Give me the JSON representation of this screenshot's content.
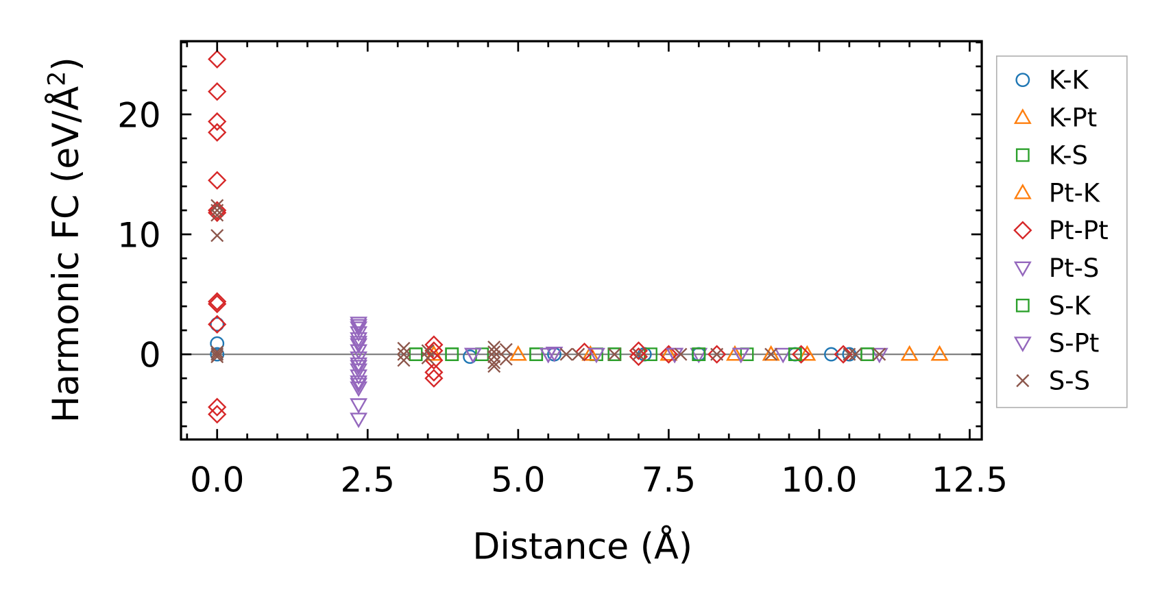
{
  "chart_data": {
    "type": "scatter",
    "title": "",
    "xlabel": "Distance (Å)",
    "ylabel": "Harmonic FC (eV/Å²)",
    "xlim": [
      -0.6,
      12.7
    ],
    "ylim": [
      -7.1,
      26.1
    ],
    "xticks": [
      0.0,
      2.5,
      5.0,
      7.5,
      10.0,
      12.5
    ],
    "xtick_labels": [
      "0.0",
      "2.5",
      "5.0",
      "7.5",
      "10.0",
      "12.5"
    ],
    "yticks": [
      0,
      10,
      20
    ],
    "ytick_labels": [
      "0",
      "10",
      "20"
    ],
    "grid": false,
    "zero_line": true,
    "legend_placement": "outside-right",
    "series": [
      {
        "name": "K-K",
        "marker": "circle",
        "color": "#1f77b4",
        "x": [
          0,
          0,
          0,
          4.2,
          5.6,
          7.1,
          8.0,
          9.6,
          10.2,
          10.5
        ],
        "y": [
          2.5,
          0.9,
          0,
          -0.2,
          0,
          0,
          0,
          0,
          0,
          0
        ]
      },
      {
        "name": "K-Pt",
        "marker": "triangle-up",
        "color": "#ff7f0e",
        "x": [
          3.6,
          5.0,
          6.2,
          7.5,
          8.6,
          9.2,
          9.8,
          11.5,
          12.0
        ],
        "y": [
          0,
          0,
          0,
          0,
          0,
          0,
          0,
          0,
          0
        ]
      },
      {
        "name": "K-S",
        "marker": "square",
        "color": "#2ca02c",
        "x": [
          3.3,
          3.9,
          4.4,
          5.3,
          6.3,
          6.6,
          7.2,
          8.0,
          8.8,
          9.6,
          10.8
        ],
        "y": [
          0,
          0,
          0,
          0,
          0,
          0,
          0,
          0,
          0,
          0,
          0
        ]
      },
      {
        "name": "Pt-K",
        "marker": "triangle-up",
        "color": "#ff7f0e",
        "x": [
          3.6,
          5.0,
          6.2,
          7.5,
          8.6,
          9.2,
          9.8,
          11.5,
          12.0
        ],
        "y": [
          0,
          0,
          0,
          0,
          0,
          0,
          0,
          0,
          0
        ]
      },
      {
        "name": "Pt-Pt",
        "marker": "diamond",
        "color": "#d62728",
        "x": [
          0,
          0,
          0,
          0,
          0,
          0,
          0,
          0,
          0,
          0,
          0,
          0,
          3.6,
          3.6,
          3.6,
          3.6,
          3.6,
          6.1,
          7.0,
          7.0,
          7.5,
          8.3,
          9.7,
          10.4
        ],
        "y": [
          24.6,
          21.9,
          19.4,
          18.5,
          14.5,
          12.0,
          11.8,
          4.4,
          4.2,
          2.5,
          -4.4,
          -5.0,
          0.8,
          0.3,
          -0.5,
          -1.5,
          -2.0,
          0.2,
          0.3,
          -0.2,
          0,
          0,
          0,
          0
        ]
      },
      {
        "name": "Pt-S",
        "marker": "triangle-down",
        "color": "#9467bd",
        "x": [
          2.35,
          2.35,
          2.35,
          2.35,
          2.35,
          2.35,
          2.35,
          2.35,
          2.35,
          2.35,
          2.35,
          2.35,
          2.35,
          2.35,
          4.25,
          5.5,
          5.6,
          6.3,
          7.6,
          8.0,
          8.7,
          9.4,
          11.0
        ],
        "y": [
          2.6,
          2.2,
          1.8,
          1.3,
          0.8,
          0.3,
          -0.3,
          -0.8,
          -1.3,
          -1.8,
          -2.3,
          -2.8,
          -4.2,
          -5.4,
          0,
          0,
          0.1,
          0,
          0,
          0,
          0,
          0,
          0
        ]
      },
      {
        "name": "S-K",
        "marker": "square",
        "color": "#2ca02c",
        "x": [
          3.3,
          3.9,
          5.3,
          6.6,
          8.0,
          9.6,
          10.8
        ],
        "y": [
          0,
          0,
          0,
          0,
          0,
          0,
          0
        ]
      },
      {
        "name": "S-Pt",
        "marker": "triangle-down",
        "color": "#9467bd",
        "x": [
          2.35,
          2.35,
          2.35,
          2.35,
          4.25,
          5.5,
          7.6,
          8.7
        ],
        "y": [
          2.4,
          1.0,
          -1.0,
          -2.5,
          0,
          0,
          0,
          0
        ]
      },
      {
        "name": "S-S",
        "marker": "x",
        "color": "#8c564b",
        "x": [
          0,
          0,
          0,
          0,
          0,
          0,
          0,
          3.1,
          3.1,
          3.1,
          3.5,
          3.5,
          4.6,
          4.6,
          4.6,
          4.6,
          4.6,
          4.8,
          4.8,
          5.8,
          6.0,
          6.6,
          7.0,
          7.7,
          8.3,
          9.2,
          10.5,
          10.6,
          11.0
        ],
        "y": [
          12.4,
          12.0,
          11.6,
          9.9,
          0.2,
          -0.2,
          0,
          0.5,
          0,
          -0.5,
          0.3,
          -0.3,
          0.6,
          0.2,
          -0.2,
          -0.7,
          -1.0,
          0.4,
          -0.4,
          0,
          0,
          0,
          0,
          0,
          0,
          0,
          0,
          0,
          0
        ]
      }
    ]
  }
}
